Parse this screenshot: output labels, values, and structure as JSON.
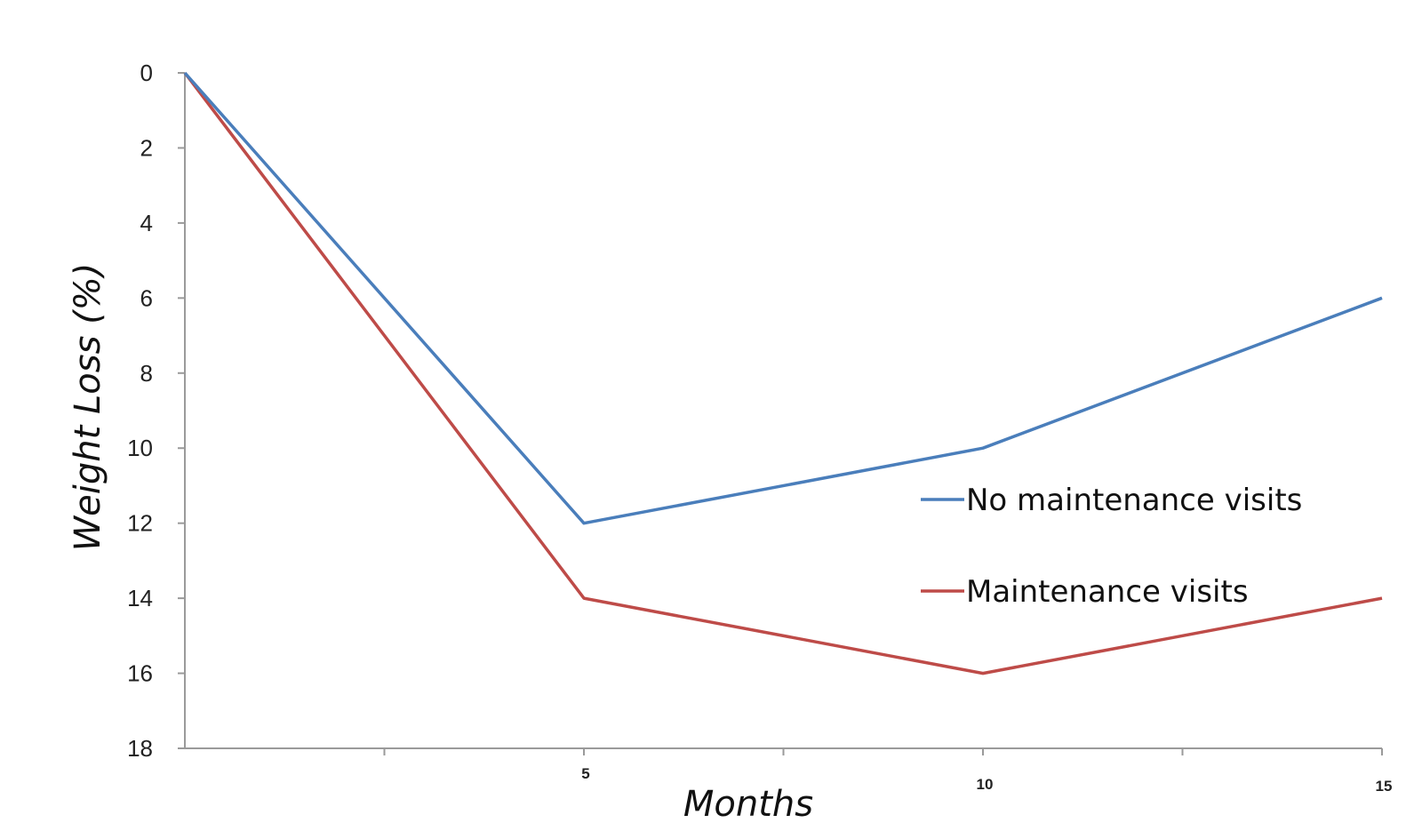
{
  "chart_data": {
    "type": "line",
    "title": "",
    "xlabel": "Months",
    "ylabel": "Weight Loss (%)",
    "x": [
      0,
      5,
      10,
      15
    ],
    "xlim": [
      0,
      15
    ],
    "x_tick_labels": [
      "5",
      "10",
      "15"
    ],
    "x_tick_values": [
      5,
      10,
      15
    ],
    "ylim": [
      0,
      18
    ],
    "y_inverted": true,
    "y_ticks": [
      0,
      2,
      4,
      6,
      8,
      10,
      12,
      14,
      16,
      18
    ],
    "grid": false,
    "legend_position": "right",
    "series": [
      {
        "name": "No maintenance visits",
        "color": "#4a7ebb",
        "values": [
          0,
          12,
          10,
          6
        ]
      },
      {
        "name": "Maintenance visits",
        "color": "#be4b48",
        "values": [
          0,
          14,
          16,
          14
        ]
      }
    ]
  }
}
